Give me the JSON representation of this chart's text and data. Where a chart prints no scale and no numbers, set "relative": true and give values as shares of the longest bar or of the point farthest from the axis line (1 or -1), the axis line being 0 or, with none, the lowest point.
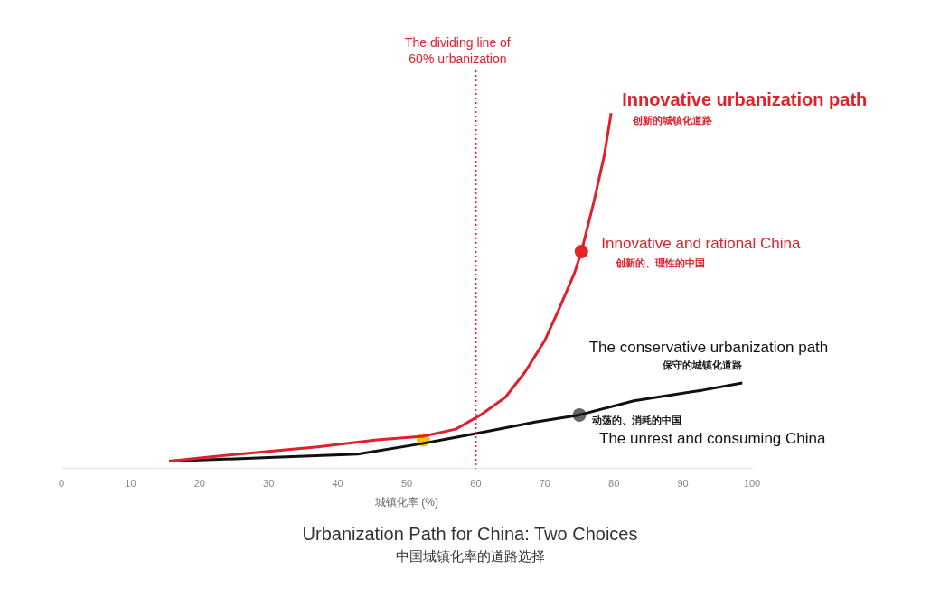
{
  "chart_data": {
    "type": "line",
    "title": "Urbanization Path for China: Two Choices",
    "subtitle": "中国城镇化率的道路选择",
    "xlabel": "城镇化率 (%)",
    "relative": true,
    "xlim": [
      0,
      100
    ],
    "xticks": [
      0,
      10,
      20,
      30,
      40,
      50,
      60,
      70,
      80,
      90,
      100
    ],
    "series": [
      {
        "color": "#e0202a",
        "x": [
          15.6,
          25.7,
          37.1,
          45.7,
          52.4,
          57.1,
          60.7,
          64.3,
          67.1,
          70,
          72.1,
          74.3,
          75.3,
          77.1,
          78.6,
          79.6
        ],
        "values": [
          0.02,
          0.04,
          0.06,
          0.08,
          0.09,
          0.11,
          0.15,
          0.2,
          0.27,
          0.36,
          0.45,
          0.55,
          0.61,
          0.75,
          0.88,
          1
        ]
      },
      {
        "color": "#111111",
        "x": [
          15.6,
          30,
          42.9,
          52.4,
          60.7,
          68.6,
          75,
          82.9,
          92.9,
          98.6
        ],
        "values": [
          0.02,
          0.03,
          0.04,
          0.07,
          0.1,
          0.13,
          0.15,
          0.19,
          0.22,
          0.24
        ]
      },
      {
        "type": "scatter",
        "color": "#f5c400",
        "x": [
          52.4
        ],
        "values": [
          0.08
        ]
      },
      {
        "type": "scatter",
        "color": "#e8231f",
        "x": [
          75.3
        ],
        "values": [
          0.61
        ]
      },
      {
        "type": "scatter",
        "color": "#666666",
        "x": [
          75
        ],
        "values": [
          0.15
        ]
      }
    ],
    "ref_lines": [
      {
        "axis": "x",
        "value": 60,
        "label": "The dividing line of 60% urbanization",
        "color": "#e0202a",
        "line_style": "dotted"
      }
    ],
    "annotations": [
      {
        "text": "Innovative urbanization path",
        "x": 79.6,
        "y": 1
      },
      "创新的城镇化道路",
      {
        "text": "Innovative and rational China",
        "x": 75.3,
        "y": 0.61
      },
      "创新的、理性的中国",
      {
        "text": "The conservative urbanization path",
        "x": 98.6,
        "y": 0.24
      },
      "保守的城镇化道路",
      {
        "text": "The unrest and consuming China",
        "x": 75,
        "y": 0.15
      },
      "动荡的、消耗的中国"
    ]
  }
}
